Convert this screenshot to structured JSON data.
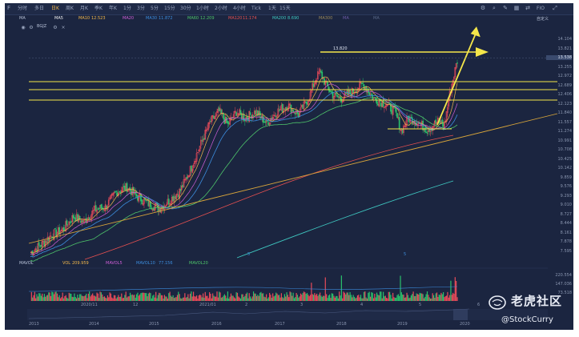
{
  "toolbar": {
    "left_icon": "F",
    "items": [
      {
        "label": "分时",
        "active": false
      },
      {
        "label": "多日",
        "active": false
      },
      {
        "label": "日K",
        "active": true
      },
      {
        "label": "周K",
        "active": false
      },
      {
        "label": "月K",
        "active": false
      },
      {
        "label": "季K",
        "active": false
      },
      {
        "label": "年K",
        "active": false
      },
      {
        "label": "1分",
        "active": false
      },
      {
        "label": "3分",
        "active": false
      },
      {
        "label": "5分",
        "active": false
      },
      {
        "label": "15分",
        "active": false
      },
      {
        "label": "30分",
        "active": false
      },
      {
        "label": "1小时",
        "active": false
      },
      {
        "label": "2小时",
        "active": false
      },
      {
        "label": "4小时",
        "active": false
      },
      {
        "label": "Tick",
        "active": false
      },
      {
        "label": "1天",
        "active": false
      },
      {
        "label": "15天",
        "active": false
      }
    ],
    "right_buttons": [
      "FIO"
    ],
    "icons": [
      "settings-icon",
      "search-icon",
      "draw-icon",
      "layout-icon",
      "compare-icon",
      "fullscreen-icon"
    ]
  },
  "ma_row": {
    "items": [
      {
        "label": "MA",
        "value": "",
        "color": "#b8c2d8"
      },
      {
        "label": "MA5",
        "value": "",
        "color": "#f0f0f0"
      },
      {
        "label": "MA10",
        "value": "12.523",
        "color": "#f2b84b"
      },
      {
        "label": "MA20",
        "value": "",
        "color": "#d05fd8"
      },
      {
        "label": "MA30",
        "value": "11.872",
        "color": "#3c8dde"
      },
      {
        "label": "MA60",
        "value": "12.209",
        "color": "#4ec46a"
      },
      {
        "label": "MA120",
        "value": "11.174",
        "color": "#e55050"
      },
      {
        "label": "MA200",
        "value": "8.690",
        "color": "#3fc7c0"
      },
      {
        "label": "MA300",
        "value": "",
        "color": "#9c8a5a"
      },
      {
        "label": "MA",
        "value": "",
        "color": "#6e5aa8"
      },
      {
        "label": "MA",
        "value": "",
        "color": "#5a6a8a"
      }
    ],
    "button": "自定义"
  },
  "symbol_row": {
    "label": "BGJZ",
    "price_tag": "13.538"
  },
  "price_axis": [
    "14.104",
    "13.821",
    "13.538",
    "13.255",
    "12.972",
    "12.689",
    "12.406",
    "12.123",
    "11.840",
    "11.557",
    "11.274",
    "10.991",
    "10.708",
    "10.425",
    "10.142",
    "9.859",
    "9.576",
    "9.293",
    "9.010",
    "8.727",
    "8.444",
    "8.161",
    "7.878",
    "7.595"
  ],
  "annotation": {
    "peak_label": "13.820",
    "wave_marks": [
      "5",
      "5"
    ]
  },
  "volume_row": {
    "label": "MAVOL",
    "vol_label": "VOL",
    "vol_value": "209.959",
    "mavol5_label": "MAVOL5",
    "mavol10_label": "MAVOL10",
    "mavol10_value": "77.156",
    "mavol20_label": "MAVOL20"
  },
  "volume_axis": [
    "220.554",
    "147.036",
    "73.518"
  ],
  "date_labels": [
    "2020/11",
    "12",
    "2021/01",
    "2",
    "3",
    "4",
    "5",
    "6"
  ],
  "year_labels": [
    "2013",
    "2014",
    "2015",
    "2016",
    "2017",
    "2018",
    "2019",
    "2020"
  ],
  "watermark": {
    "logo": "tiger-logo-icon",
    "brand": "老虎社区",
    "handle": "@StockCurry"
  },
  "colors": {
    "up": "#e94b5a",
    "down": "#2ac16b",
    "bg": "#1b2540",
    "yellow": "#f4e64a",
    "trend": "#d8a53a"
  }
}
